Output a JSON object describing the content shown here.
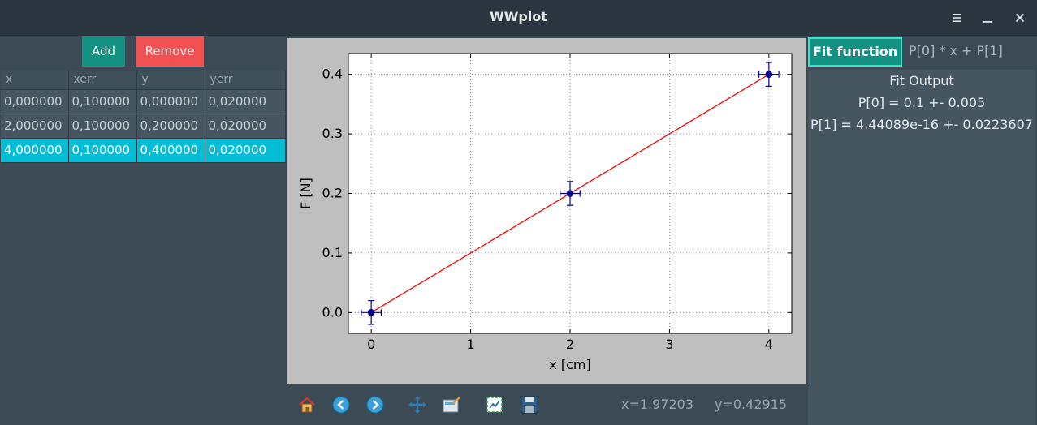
{
  "window": {
    "title": "WWplot",
    "menu_icon": "hamburger-icon",
    "minimize_icon": "minimize-icon",
    "close_icon": "close-icon"
  },
  "left_panel": {
    "add_label": "Add",
    "remove_label": "Remove",
    "columns": [
      "x",
      "xerr",
      "y",
      "yerr"
    ],
    "rows": [
      [
        "0,000000",
        "0,100000",
        "0,000000",
        "0,020000"
      ],
      [
        "2,000000",
        "0,100000",
        "0,200000",
        "0,020000"
      ],
      [
        "4,000000",
        "0,100000",
        "0,400000",
        "0,020000"
      ]
    ],
    "selected_row": 2
  },
  "plot_toolbar": {
    "tools": [
      "home-icon",
      "back-icon",
      "forward-icon",
      "pan-icon",
      "zoom-icon",
      "configure-subplots-icon",
      "save-icon"
    ],
    "x_readout": "x=1.97203",
    "y_readout": "y=0.42915"
  },
  "right_panel": {
    "fit_button_label": "Fit function",
    "fit_function": "P[0] * x + P[1]",
    "output_title": "Fit Output",
    "output_lines": [
      "P[0] = 0.1 +- 0.005",
      "P[1] = 4.44089e-16 +- 0.0223607"
    ]
  },
  "colors": {
    "accent": "#139182",
    "selection": "#00bcd4",
    "remove": "#f15152",
    "fit_line": "#ff0000",
    "points": "#00008b"
  },
  "chart_data": {
    "type": "scatter",
    "xlabel": "x [cm]",
    "ylabel": "F [N]",
    "xlim": [
      -0.23,
      4.23
    ],
    "ylim": [
      -0.035,
      0.435
    ],
    "xticks": [
      0,
      1,
      2,
      3,
      4
    ],
    "xtick_labels": [
      "0",
      "1",
      "2",
      "3",
      "4"
    ],
    "yticks": [
      0.0,
      0.1,
      0.2,
      0.3,
      0.4
    ],
    "ytick_labels": [
      "0.0",
      "0.1",
      "0.2",
      "0.3",
      "0.4"
    ],
    "grid": true,
    "series": [
      {
        "x": [
          0,
          2,
          4
        ],
        "y": [
          0.0,
          0.2,
          0.4
        ],
        "xerr": [
          0.1,
          0.1,
          0.1
        ],
        "yerr": [
          0.02,
          0.02,
          0.02
        ]
      }
    ],
    "fit": {
      "function": "P[0] * x + P[1]",
      "p0": 0.1,
      "p1": 4.44089e-16,
      "x_range": [
        0,
        4
      ]
    }
  }
}
